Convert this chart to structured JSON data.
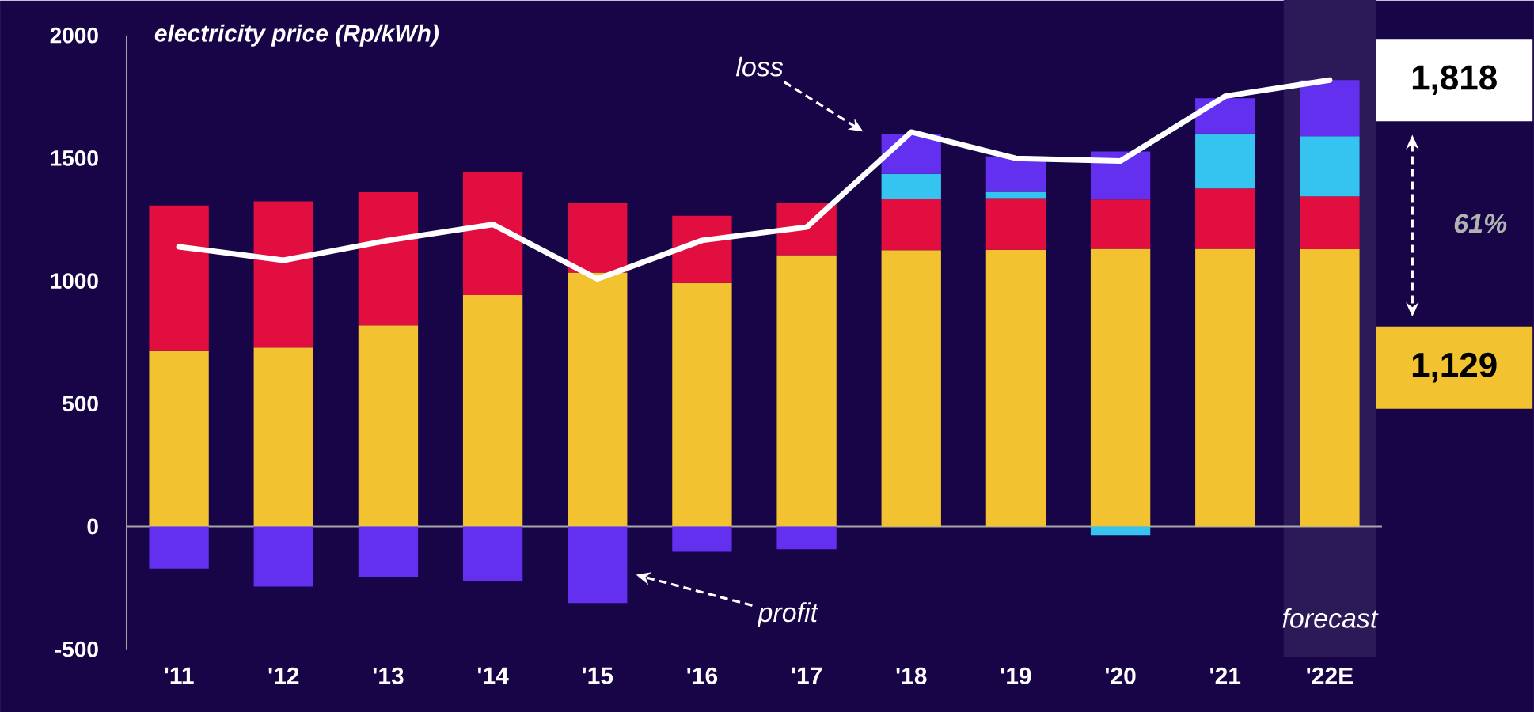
{
  "chart_data": {
    "type": "bar",
    "stacked": true,
    "ylabel": "electricity price (Rp/kWh)",
    "categories": [
      "'11",
      "'12",
      "'13",
      "'14",
      "'15",
      "'16",
      "'17",
      "'18",
      "'19",
      "'20",
      "'21",
      "'22E"
    ],
    "ylim": [
      -500,
      2000
    ],
    "yticks": [
      -500,
      0,
      500,
      1000,
      1500,
      2000
    ],
    "series": [
      {
        "color": "#f2c230",
        "values": [
          714,
          729,
          819,
          942,
          1034,
          991,
          1105,
          1125,
          1127,
          1131,
          1131,
          1129
        ]
      },
      {
        "color": "#e30e40",
        "values": [
          593,
          595,
          542,
          503,
          284,
          274,
          211,
          208,
          210,
          200,
          245,
          215
        ]
      },
      {
        "color": "#35c3f0",
        "values": [
          null,
          null,
          null,
          null,
          null,
          null,
          null,
          103,
          26,
          -35,
          224,
          245
        ]
      },
      {
        "color": "#6330f0",
        "values": [
          -172,
          -245,
          -205,
          -222,
          -312,
          -103,
          -93,
          161,
          144,
          196,
          144,
          229
        ]
      },
      {
        "type": "line",
        "color": "#ffffff",
        "values": [
          1139,
          1084,
          1165,
          1230,
          1008,
          1165,
          1219,
          1606,
          1499,
          1488,
          1752,
          1818
        ]
      }
    ],
    "bands": [
      {
        "axis": "x",
        "from": "'22E",
        "to": "'22E",
        "label": "forecast",
        "color": "#2c1a58"
      }
    ],
    "annotations": [
      "loss",
      "profit",
      "1,818",
      "1,129",
      "61%"
    ]
  }
}
